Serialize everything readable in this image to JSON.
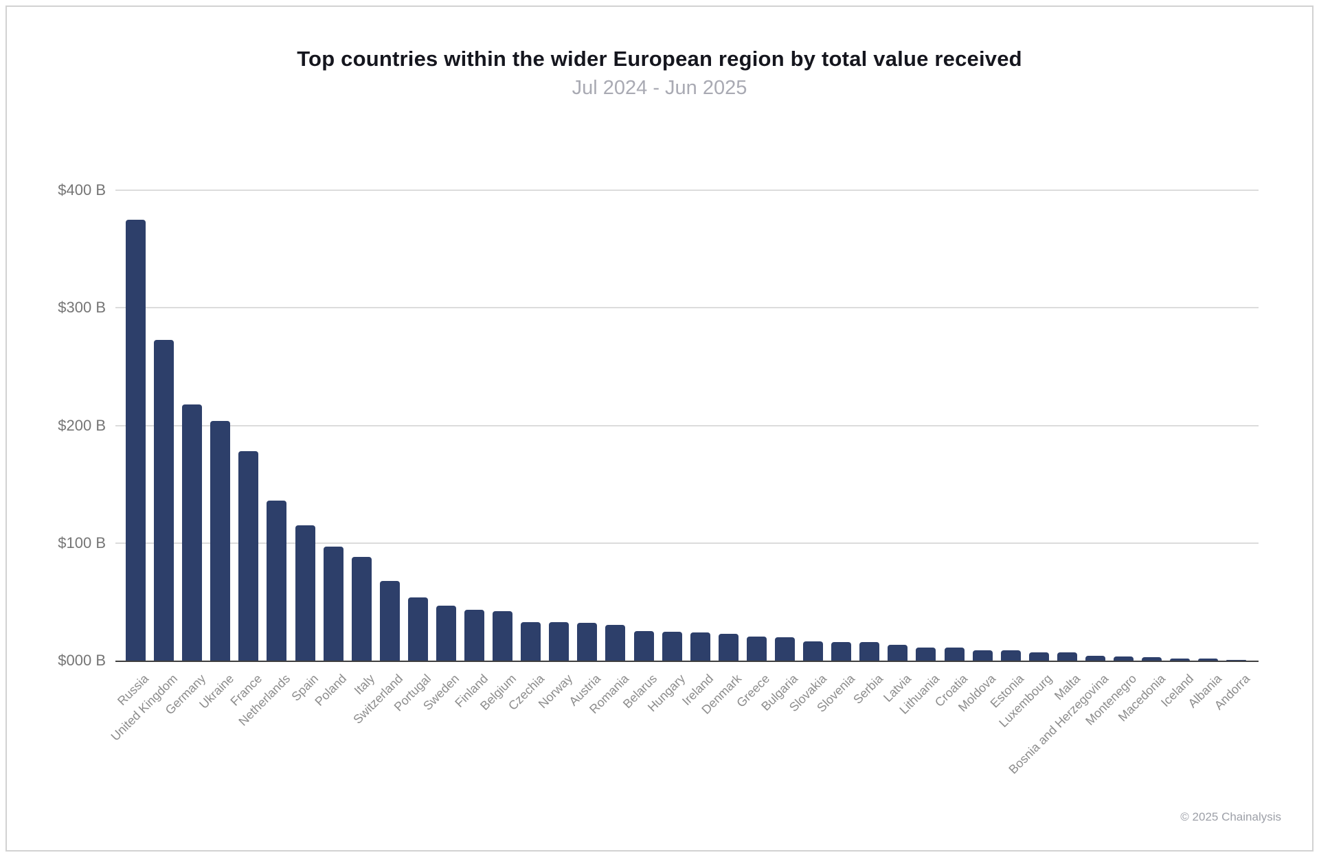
{
  "header": {
    "title": "Top countries within the wider European region by total value received",
    "subtitle": "Jul 2024 - Jun 2025"
  },
  "chart_data": {
    "type": "bar",
    "title": "Top countries within the wider European region by total value received",
    "subtitle": "Jul 2024 - Jun 2025",
    "unit": "USD billions received",
    "categories": [
      "Russia",
      "United Kingdom",
      "Germany",
      "Ukraine",
      "France",
      "Netherlands",
      "Spain",
      "Poland",
      "Italy",
      "Switzerland",
      "Portugal",
      "Sweden",
      "Finland",
      "Belgium",
      "Czechia",
      "Norway",
      "Austria",
      "Romania",
      "Belarus",
      "Hungary",
      "Ireland",
      "Denmark",
      "Greece",
      "Bulgaria",
      "Slovakia",
      "Slovenia",
      "Serbia",
      "Latvia",
      "Lithuania",
      "Croatia",
      "Moldova",
      "Estonia",
      "Luxembourg",
      "Malta",
      "Bosnia and Herzegovina",
      "Montenegro",
      "Macedonia",
      "Iceland",
      "Albania",
      "Andorra"
    ],
    "values": [
      375,
      273,
      218,
      204,
      178,
      136,
      115,
      97,
      88,
      68,
      54,
      47,
      43,
      42,
      33,
      32.5,
      32,
      30.5,
      25,
      24.5,
      24,
      22.5,
      20.2,
      20,
      16.5,
      15.6,
      15.5,
      13.7,
      11.2,
      11,
      9,
      8.9,
      7.1,
      7,
      3.9,
      3.8,
      2.7,
      1.8,
      1.7,
      0.4
    ],
    "y_ticks": [
      {
        "label": "$400 B",
        "value": 400
      },
      {
        "label": "$300 B",
        "value": 300
      },
      {
        "label": "$200 B",
        "value": 200
      },
      {
        "label": "$100 B",
        "value": 100
      },
      {
        "label": "$000 B",
        "value": 0
      }
    ],
    "ylim": [
      0,
      400
    ],
    "xlabel": "",
    "ylabel": "",
    "grid": true,
    "legend": "none",
    "colors": {
      "bar": "#2d3f6a",
      "gridline": "#dcdcdc",
      "axis_line": "#3f3f3f"
    }
  },
  "footer": {
    "copyright": "© 2025 Chainalysis"
  }
}
